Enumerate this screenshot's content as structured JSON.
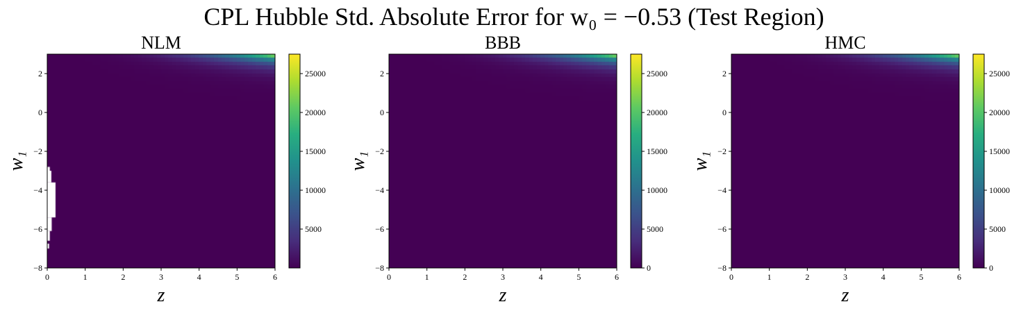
{
  "figure": {
    "title": "CPL Hubble Std. Absolute Error for w₀ = −0.53 (Test Region)"
  },
  "chart_data": [
    {
      "type": "heatmap",
      "title": "NLM",
      "xlabel": "z",
      "ylabel": "w₁",
      "xlim": [
        0,
        6
      ],
      "ylim": [
        -8,
        3
      ],
      "x_ticks": [
        "0",
        "1",
        "2",
        "3",
        "4",
        "5",
        "6"
      ],
      "y_ticks": [
        "−8",
        "−6",
        "−4",
        "−2",
        "0",
        "2"
      ],
      "colormap": "viridis",
      "colorbar": {
        "min": 0,
        "max": 27500,
        "ticks": [
          "5000",
          "10000",
          "15000",
          "20000",
          "25000"
        ]
      },
      "values_summary": "Near 0 over most of the region; rises sharply toward z=6, w₁=3 reaching ~27000",
      "missing_region": {
        "z_range": [
          0,
          0.2
        ],
        "w1_range": [
          -7,
          -2.8
        ]
      }
    },
    {
      "type": "heatmap",
      "title": "BBB",
      "xlabel": "z",
      "ylabel": "w₁",
      "xlim": [
        0,
        6
      ],
      "ylim": [
        -8,
        3
      ],
      "x_ticks": [
        "0",
        "1",
        "2",
        "3",
        "4",
        "5",
        "6"
      ],
      "y_ticks": [
        "−8",
        "−6",
        "−4",
        "−2",
        "0",
        "2"
      ],
      "colormap": "viridis",
      "colorbar": {
        "min": 0,
        "max": 27500,
        "ticks": [
          "0",
          "5000",
          "10000",
          "15000",
          "20000",
          "25000"
        ]
      },
      "values_summary": "Near 0 over most of the region; rises sharply toward z=6, w₁=3 reaching ~27000"
    },
    {
      "type": "heatmap",
      "title": "HMC",
      "xlabel": "z",
      "ylabel": "w₁",
      "xlim": [
        0,
        6
      ],
      "ylim": [
        -8,
        3
      ],
      "x_ticks": [
        "0",
        "1",
        "2",
        "3",
        "4",
        "5",
        "6"
      ],
      "y_ticks": [
        "−8",
        "−6",
        "−4",
        "−2",
        "0",
        "2"
      ],
      "colormap": "viridis",
      "colorbar": {
        "min": 0,
        "max": 27500,
        "ticks": [
          "0",
          "5000",
          "10000",
          "15000",
          "20000",
          "25000"
        ]
      },
      "values_summary": "Near 0 over most of the region; rises sharply toward z=6, w₁=3 reaching ~27000"
    }
  ]
}
